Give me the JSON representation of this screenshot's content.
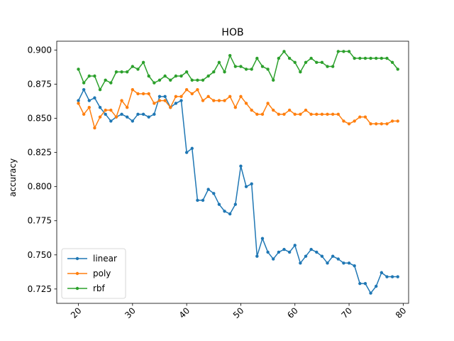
{
  "chart_data": {
    "type": "line",
    "title": "HOB",
    "xlabel": "",
    "ylabel": "accuracy",
    "xlim": [
      16,
      81
    ],
    "ylim": [
      0.7145,
      0.9065
    ],
    "xticks": [
      20,
      30,
      40,
      50,
      60,
      70,
      80
    ],
    "xtick_labels": [
      "20",
      "30",
      "40",
      "50",
      "60",
      "70",
      "80"
    ],
    "xtick_rotation": 45,
    "yticks": [
      0.725,
      0.75,
      0.775,
      0.8,
      0.825,
      0.85,
      0.875,
      0.9
    ],
    "ytick_labels": [
      "0.725",
      "0.750",
      "0.775",
      "0.800",
      "0.825",
      "0.850",
      "0.875",
      "0.900"
    ],
    "grid": false,
    "legend_position": "lower-left",
    "x": [
      20,
      21,
      22,
      23,
      24,
      25,
      26,
      27,
      28,
      29,
      30,
      31,
      32,
      33,
      34,
      35,
      36,
      37,
      38,
      39,
      40,
      41,
      42,
      43,
      44,
      45,
      46,
      47,
      48,
      49,
      50,
      51,
      52,
      53,
      54,
      55,
      56,
      57,
      58,
      59,
      60,
      61,
      62,
      63,
      64,
      65,
      66,
      67,
      68,
      69,
      70,
      71,
      72,
      73,
      74,
      75,
      76,
      77,
      78,
      79
    ],
    "series": [
      {
        "name": "linear",
        "color": "#1f77b4",
        "values": [
          0.863,
          0.871,
          0.863,
          0.865,
          0.858,
          0.853,
          0.848,
          0.851,
          0.853,
          0.851,
          0.848,
          0.853,
          0.853,
          0.851,
          0.853,
          0.866,
          0.866,
          0.858,
          0.861,
          0.863,
          0.825,
          0.828,
          0.79,
          0.79,
          0.798,
          0.795,
          0.787,
          0.782,
          0.78,
          0.787,
          0.815,
          0.8,
          0.802,
          0.749,
          0.762,
          0.752,
          0.747,
          0.752,
          0.754,
          0.752,
          0.757,
          0.744,
          0.749,
          0.754,
          0.752,
          0.749,
          0.744,
          0.749,
          0.747,
          0.744,
          0.744,
          0.742,
          0.729,
          0.729,
          0.722,
          0.727,
          0.737,
          0.734,
          0.734,
          0.734
        ]
      },
      {
        "name": "poly",
        "color": "#ff7f0e",
        "values": [
          0.861,
          0.853,
          0.858,
          0.843,
          0.851,
          0.856,
          0.856,
          0.851,
          0.863,
          0.858,
          0.871,
          0.868,
          0.868,
          0.868,
          0.861,
          0.863,
          0.863,
          0.858,
          0.866,
          0.866,
          0.871,
          0.868,
          0.871,
          0.863,
          0.866,
          0.863,
          0.863,
          0.863,
          0.866,
          0.858,
          0.866,
          0.861,
          0.856,
          0.853,
          0.853,
          0.861,
          0.856,
          0.853,
          0.853,
          0.856,
          0.853,
          0.853,
          0.856,
          0.853,
          0.853,
          0.853,
          0.853,
          0.853,
          0.853,
          0.848,
          0.846,
          0.848,
          0.851,
          0.851,
          0.846,
          0.846,
          0.846,
          0.846,
          0.848,
          0.848
        ]
      },
      {
        "name": "rbf",
        "color": "#2ca02c",
        "values": [
          0.886,
          0.876,
          0.881,
          0.881,
          0.871,
          0.878,
          0.876,
          0.884,
          0.884,
          0.884,
          0.888,
          0.886,
          0.891,
          0.881,
          0.876,
          0.878,
          0.881,
          0.878,
          0.881,
          0.881,
          0.884,
          0.878,
          0.878,
          0.878,
          0.881,
          0.884,
          0.891,
          0.884,
          0.896,
          0.888,
          0.888,
          0.886,
          0.886,
          0.894,
          0.888,
          0.886,
          0.878,
          0.894,
          0.899,
          0.894,
          0.891,
          0.884,
          0.891,
          0.894,
          0.891,
          0.891,
          0.888,
          0.888,
          0.899,
          0.899,
          0.899,
          0.894,
          0.894,
          0.894,
          0.894,
          0.894,
          0.894,
          0.894,
          0.891,
          0.886
        ]
      }
    ]
  }
}
